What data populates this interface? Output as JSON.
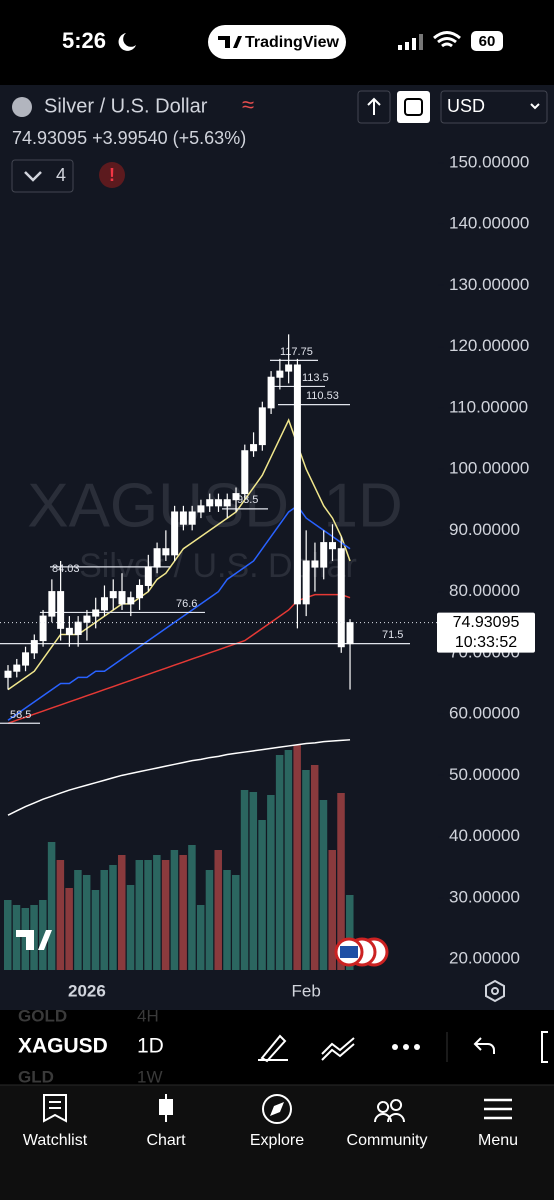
{
  "status_bar": {
    "time": "5:26",
    "app": "TradingView",
    "battery": "60"
  },
  "header": {
    "symbol_name": "Silver / U.S. Dollar",
    "price_line": "74.93095 +3.99540 (+5.63%)",
    "indicator_count": "4",
    "currency": "USD"
  },
  "chart_data": {
    "type": "candlestick",
    "watermark": "XAGUSD, 1D",
    "watermark_sub": "Silver / U.S. Dollar",
    "categories": [
      null,
      null,
      null,
      null,
      null,
      null,
      null,
      null,
      null,
      "2026",
      null,
      null,
      null,
      null,
      null,
      null,
      null,
      null,
      null,
      null,
      null,
      null,
      null,
      null,
      null,
      null,
      null,
      null,
      null,
      null,
      null,
      null,
      null,
      null,
      "Feb",
      null,
      null,
      null,
      null,
      null
    ],
    "open": [
      66,
      67,
      68,
      70,
      72,
      76,
      80,
      74,
      73,
      75,
      76,
      77,
      79,
      80,
      78,
      79,
      81,
      84,
      87,
      86,
      93,
      91,
      93,
      94,
      95,
      94,
      95,
      96,
      103,
      104,
      110,
      115,
      116,
      117,
      78,
      85,
      84,
      88,
      87,
      71.5
    ],
    "high": [
      68,
      69,
      71,
      73,
      77,
      82,
      85,
      76,
      76,
      77,
      79,
      81,
      82,
      83,
      80,
      82,
      86,
      88,
      90,
      94,
      94,
      94,
      95,
      96,
      96,
      96,
      97,
      104,
      106,
      111,
      116,
      118,
      122,
      118,
      90,
      88,
      90,
      91,
      89,
      75.5
    ],
    "low": [
      64,
      66,
      67,
      69,
      71,
      75,
      72,
      71,
      71,
      72,
      74,
      76,
      77,
      77,
      76,
      77,
      80,
      83,
      85,
      85,
      90,
      90,
      92,
      93,
      93,
      92,
      93,
      95,
      102,
      103,
      109,
      113,
      114,
      74,
      76,
      80,
      82,
      85,
      70,
      64
    ],
    "close": [
      67,
      68,
      70,
      72,
      76,
      80,
      74,
      73,
      75,
      76,
      77,
      79,
      80,
      78,
      79,
      81,
      84,
      87,
      86,
      93,
      91,
      93,
      94,
      95,
      94,
      95,
      96,
      103,
      104,
      110,
      115,
      116,
      117,
      78,
      85,
      84,
      88,
      87,
      71,
      74.93095
    ],
    "volume": [
      70,
      65,
      62,
      65,
      70,
      128,
      110,
      82,
      100,
      95,
      80,
      100,
      105,
      115,
      85,
      110,
      110,
      115,
      110,
      120,
      115,
      125,
      65,
      100,
      120,
      100,
      95,
      180,
      178,
      150,
      175,
      215,
      220,
      225,
      200,
      205,
      170,
      120,
      177,
      75
    ],
    "series": [
      {
        "color": "#f0e68c",
        "values": [
          64,
          65,
          66,
          67,
          69,
          71,
          73,
          73,
          73,
          74,
          75,
          76,
          77,
          78,
          78,
          79,
          80,
          82,
          83,
          85,
          87,
          88,
          89,
          90,
          91,
          92,
          93,
          95,
          97,
          99,
          102,
          105,
          108,
          104,
          100,
          97,
          94,
          92,
          89,
          85
        ]
      },
      {
        "color": "#2962ff",
        "values": [
          59,
          60,
          61,
          62,
          63,
          64,
          65,
          65,
          66,
          66,
          67,
          67,
          68,
          69,
          70,
          71,
          72,
          73,
          74,
          75,
          76,
          77,
          78,
          79,
          80,
          82,
          83,
          84,
          85,
          87,
          89,
          91,
          93,
          94,
          92,
          91,
          90,
          89,
          88,
          87
        ]
      },
      {
        "color": "#e53935",
        "values": [
          58.5,
          59,
          59.5,
          60,
          60.5,
          61,
          61.5,
          62,
          62.5,
          63,
          63.5,
          64,
          64.5,
          65,
          65.5,
          66,
          66.5,
          67,
          67.5,
          68,
          68.5,
          69,
          69.5,
          70,
          70.5,
          71,
          71.5,
          72,
          73,
          74,
          75,
          76,
          77,
          78.5,
          79,
          79.5,
          79.5,
          79.5,
          79.5,
          79
        ]
      },
      {
        "color": "#ffffff",
        "values": [
          43.5,
          44.2,
          44.9,
          45.5,
          46.1,
          46.6,
          47.1,
          47.6,
          48,
          48.4,
          48.8,
          49.2,
          49.6,
          50,
          50.3,
          50.6,
          50.9,
          51.2,
          51.5,
          51.8,
          52.1,
          52.4,
          52.6,
          52.9,
          53.1,
          53.4,
          53.6,
          53.8,
          54,
          54.2,
          54.4,
          54.6,
          54.8,
          55,
          55.2,
          55.3,
          55.5,
          55.6,
          55.7,
          55.8
        ]
      }
    ],
    "levels": [
      117.75,
      113.5,
      110.53,
      93.5,
      84.03,
      76.6,
      71.5,
      58.5
    ],
    "last_price": 74.93095,
    "countdown": "10:33:52",
    "ylim": [
      17.4,
      152.1
    ],
    "yticks": [
      {
        "value": 150,
        "label": "150.00000"
      },
      {
        "value": 140,
        "label": "140.00000"
      },
      {
        "value": 130,
        "label": "130.00000"
      },
      {
        "value": 120,
        "label": "120.00000"
      },
      {
        "value": 110,
        "label": "110.00000"
      },
      {
        "value": 100,
        "label": "100.00000"
      },
      {
        "value": 90,
        "label": "90.00000"
      },
      {
        "value": 80,
        "label": "80.00000"
      },
      {
        "value": 70,
        "label": "70.00000"
      },
      {
        "value": 60,
        "label": "60.00000"
      },
      {
        "value": 50,
        "label": "50.00000"
      },
      {
        "value": 40,
        "label": "40.00000"
      },
      {
        "value": 30,
        "label": "30.00000"
      },
      {
        "value": 20,
        "label": "20.00000"
      }
    ]
  },
  "toolbar": {
    "symbol": "XAGUSD",
    "interval": "1D",
    "prev_symbol": "GOLD",
    "prev_interval": "4H",
    "next_symbol": "GLD",
    "next_interval": "1W"
  },
  "tab_bar": [
    "Watchlist",
    "Chart",
    "Explore",
    "Community",
    "Menu"
  ]
}
